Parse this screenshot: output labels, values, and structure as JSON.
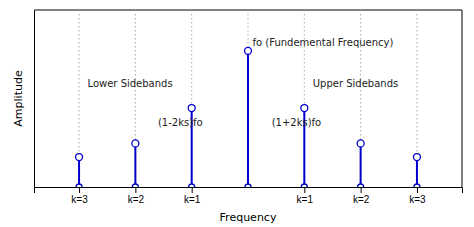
{
  "chart_data": {
    "type": "stem",
    "x": [
      -3,
      -2,
      -1,
      0,
      1,
      2,
      3
    ],
    "values": [
      0.22,
      0.32,
      0.58,
      1.0,
      0.58,
      0.32,
      0.22
    ],
    "xlabel": "Frequency",
    "ylabel": "Amplitude",
    "xlim": [
      -3.8,
      3.8
    ],
    "ylim": [
      0,
      1.3
    ],
    "xticks": [
      {
        "value": -3,
        "label": "k=3"
      },
      {
        "value": -2,
        "label": "k=2"
      },
      {
        "value": -1,
        "label": "k=1"
      },
      {
        "value": 1,
        "label": "k=1"
      },
      {
        "value": 2,
        "label": "k=2"
      },
      {
        "value": 3,
        "label": "k=3"
      }
    ],
    "tick_labels": "x",
    "color": "#0000cc",
    "annotations": [
      {
        "text": "fo (Fundemental Frequency)",
        "x": 0.08,
        "y": 1.06
      },
      {
        "text": "Lower Sidebands",
        "x": -2.85,
        "y": 0.76
      },
      {
        "text": "Upper Sidebands",
        "x": 1.15,
        "y": 0.76
      },
      {
        "text": "(1-2ks)fo",
        "x": -1.6,
        "y": 0.47
      },
      {
        "text": "(1+2ks)fo",
        "x": 0.42,
        "y": 0.47
      }
    ]
  }
}
